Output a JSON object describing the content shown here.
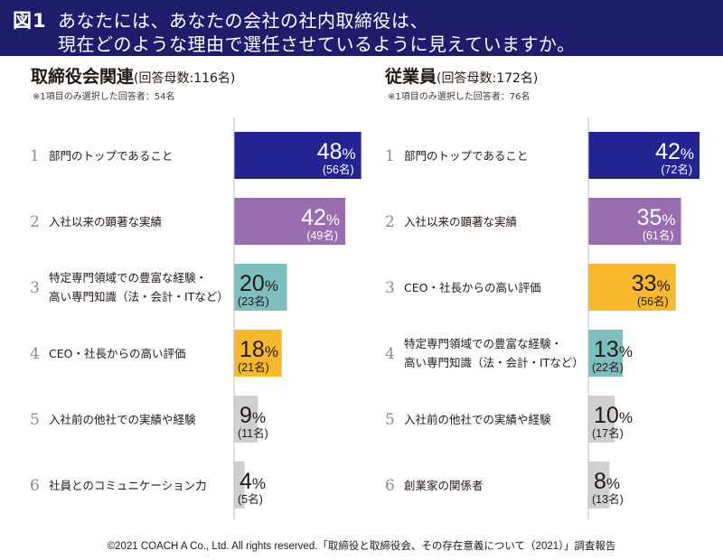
{
  "header": {
    "figure_label": "図1",
    "title_line1": "あなたには、あなたの会社の社内取締役は、",
    "title_line2": "現在どのような理由で選任させているように見えていますか。"
  },
  "colors": {
    "title_band": "#1d1d6c",
    "navy": "#232392",
    "purple": "#9a6cb0",
    "teal": "#7dbfbe",
    "yellow": "#f6b92b",
    "gray": "#d0d0d0",
    "axis": "#bdbdbd"
  },
  "chart_data": [
    {
      "type": "bar",
      "orientation": "horizontal",
      "title": "取締役会関連",
      "base_label": "(回答母数:116名)",
      "note": "※1項目のみ選択した回答者：54名",
      "xlim": [
        0,
        50
      ],
      "grid": false,
      "ranks": [
        "1",
        "2",
        "3",
        "4",
        "5",
        "6"
      ],
      "categories": [
        [
          "部門のトップであること"
        ],
        [
          "入社以来の顕著な実績"
        ],
        [
          "特定専門領域での豊富な経験・",
          "高い専門知識（法・会計・ITなど）"
        ],
        [
          "CEO・社長からの高い評価"
        ],
        [
          "入社前の他社での実績や経験"
        ],
        [
          "社員とのコミュニケーション力"
        ]
      ],
      "values": [
        48,
        42,
        20,
        18,
        9,
        4
      ],
      "counts": [
        "(56名)",
        "(49名)",
        "(23名)",
        "(21名)",
        "(11名)",
        "(5名)"
      ],
      "bar_colors": [
        "navy",
        "purple",
        "teal",
        "yellow",
        "gray",
        "gray"
      ],
      "percent_sign": "%"
    },
    {
      "type": "bar",
      "orientation": "horizontal",
      "title": "従業員",
      "base_label": "(回答母数:172名)",
      "note": "※1項目のみ選択した回答者：76名",
      "xlim": [
        0,
        50
      ],
      "grid": false,
      "ranks": [
        "1",
        "2",
        "3",
        "4",
        "5",
        "6"
      ],
      "categories": [
        [
          "部門のトップであること"
        ],
        [
          "入社以来の顕著な実績"
        ],
        [
          "CEO・社長からの高い評価"
        ],
        [
          "特定専門領域での豊富な経験・",
          "高い専門知識（法・会計・ITなど）"
        ],
        [
          "入社前の他社での実績や経験"
        ],
        [
          "創業家の関係者"
        ]
      ],
      "values": [
        42,
        35,
        33,
        13,
        10,
        8
      ],
      "counts": [
        "(72名)",
        "(61名)",
        "(56名)",
        "(22名)",
        "(17名)",
        "(13名)"
      ],
      "bar_colors": [
        "navy",
        "purple",
        "yellow",
        "teal",
        "gray",
        "gray"
      ],
      "percent_sign": "%"
    }
  ],
  "footer": {
    "text": "©2021 COACH A Co., Ltd. All rights reserved.「取締役と取締役会、その存在意義について（2021）」調査報告"
  }
}
